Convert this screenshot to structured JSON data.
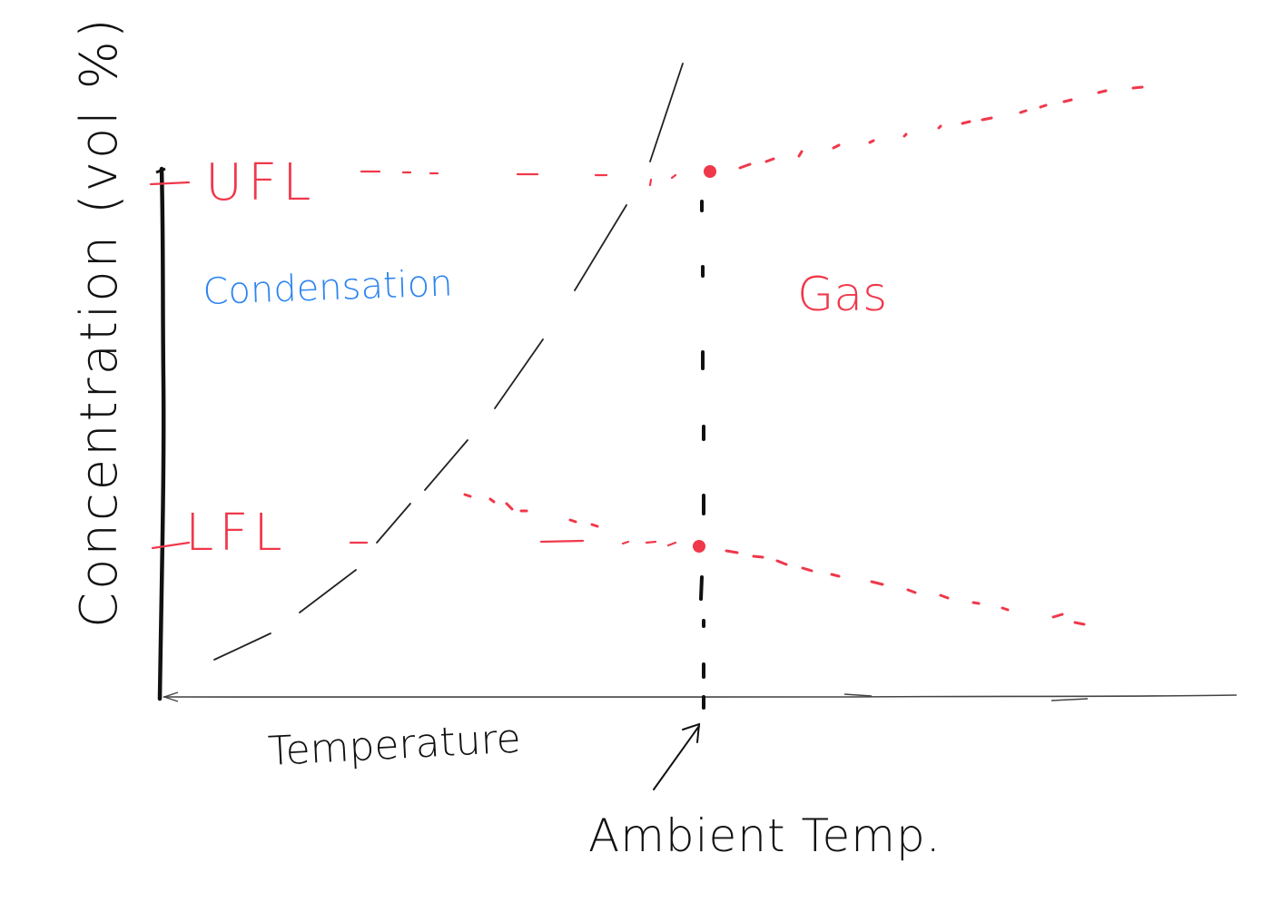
{
  "labels": {
    "y_axis": "Concentration (vol %)",
    "x_axis": "Temperature",
    "upper_limit": "UFL",
    "lower_limit": "LFL",
    "region_left": "Condensation",
    "region_right": "Gas",
    "ambient": "Ambient Temp."
  },
  "colors": {
    "red": "#f0384b",
    "blue": "#2d84f0",
    "ink": "#111111"
  }
}
